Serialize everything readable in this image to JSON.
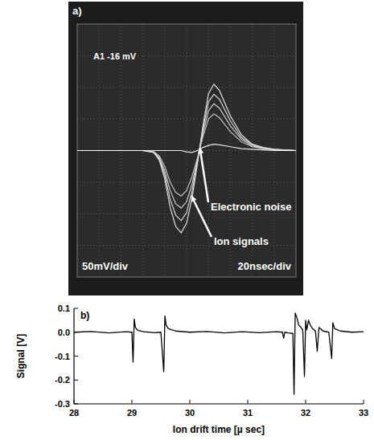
{
  "chart_data": [
    {
      "type": "line",
      "title": "a)",
      "annotations": [
        "A1 -16 mV",
        "50mV/div",
        "20nsec/div",
        "Electronic noise",
        "Ion signals"
      ],
      "x": [
        0,
        20,
        40,
        60,
        70,
        75,
        80,
        85,
        90,
        95,
        100,
        105,
        110,
        115,
        120,
        125,
        130,
        140,
        150,
        160,
        170,
        180,
        200
      ],
      "series": [
        {
          "color": "#f2f2f2",
          "values": [
            0,
            0,
            0,
            0,
            -3,
            -15,
            -45,
            -90,
            -120,
            -130,
            -115,
            -75,
            -20,
            40,
            90,
            105,
            95,
            55,
            25,
            10,
            5,
            2,
            0
          ]
        },
        {
          "color": "#e6e6e6",
          "values": [
            0,
            0,
            0,
            0,
            -3,
            -13,
            -38,
            -77,
            -102,
            -111,
            -98,
            -64,
            -17,
            34,
            77,
            89,
            81,
            47,
            21,
            9,
            4,
            2,
            0
          ]
        },
        {
          "color": "#dcdcdc",
          "values": [
            0,
            0,
            0,
            0,
            -2,
            -11,
            -32,
            -63,
            -84,
            -91,
            -81,
            -53,
            -14,
            28,
            63,
            74,
            67,
            39,
            18,
            7,
            4,
            1,
            0
          ]
        },
        {
          "color": "#d0d0d0",
          "values": [
            0,
            0,
            0,
            0,
            -2,
            -8,
            -25,
            -50,
            -66,
            -72,
            -63,
            -41,
            -11,
            22,
            50,
            58,
            52,
            30,
            14,
            6,
            3,
            1,
            0
          ]
        },
        {
          "color": "#ffffff",
          "values": [
            0,
            0,
            0,
            0,
            0,
            0,
            0,
            0,
            0,
            0,
            -2,
            -3,
            0,
            5,
            8,
            10,
            9,
            6,
            3,
            2,
            1,
            0,
            0
          ]
        }
      ],
      "xlim": [
        0,
        200
      ],
      "xticks": [
        0,
        20,
        40,
        60,
        80,
        100,
        120,
        140,
        160,
        180,
        200
      ],
      "ylim": [
        -200,
        200
      ],
      "yticks": [
        -200,
        -150,
        -100,
        -50,
        0,
        50,
        100,
        150,
        200
      ],
      "grid": true,
      "tick_labels": false
    },
    {
      "type": "line",
      "title": "b)",
      "x_label": "Ion drift time [µ sec]",
      "y_label": "Signal [V]",
      "x": [
        28.0,
        28.3,
        28.6,
        28.9,
        29.0,
        29.02,
        29.04,
        29.06,
        29.1,
        29.2,
        29.4,
        29.5,
        29.55,
        29.57,
        29.59,
        29.63,
        29.75,
        30.0,
        30.3,
        30.6,
        30.9,
        31.2,
        31.5,
        31.6,
        31.62,
        31.64,
        31.7,
        31.78,
        31.8,
        31.82,
        31.85,
        31.88,
        31.92,
        31.95,
        31.98,
        32.0,
        32.02,
        32.05,
        32.08,
        32.12,
        32.17,
        32.2,
        32.23,
        32.3,
        32.4,
        32.45,
        32.47,
        32.5,
        32.6,
        32.8,
        33.0
      ],
      "series": [
        {
          "color": "#000000",
          "values": [
            0.0,
            0.003,
            -0.003,
            0.002,
            0.0,
            -0.125,
            0.055,
            0.02,
            0.008,
            0.002,
            -0.002,
            0.0,
            -0.165,
            0.068,
            0.03,
            0.015,
            0.005,
            0.0,
            0.003,
            -0.003,
            0.002,
            -0.002,
            0.002,
            0.0,
            -0.025,
            0.0,
            -0.003,
            -0.005,
            -0.26,
            0.08,
            0.06,
            0.03,
            0.02,
            0.01,
            -0.185,
            0.05,
            0.01,
            0.05,
            0.03,
            0.015,
            0.005,
            -0.08,
            0.02,
            0.005,
            0.0,
            -0.11,
            0.04,
            0.015,
            0.005,
            0.0,
            0.002
          ]
        }
      ],
      "xlim": [
        28,
        33
      ],
      "xticks": [
        28,
        29,
        30,
        31,
        32,
        33
      ],
      "ylim": [
        -0.3,
        0.1
      ],
      "yticks": [
        -0.3,
        -0.2,
        -0.1,
        {
          "value": 0,
          "label": "0.0"
        },
        0.1
      ],
      "grid": false
    }
  ]
}
